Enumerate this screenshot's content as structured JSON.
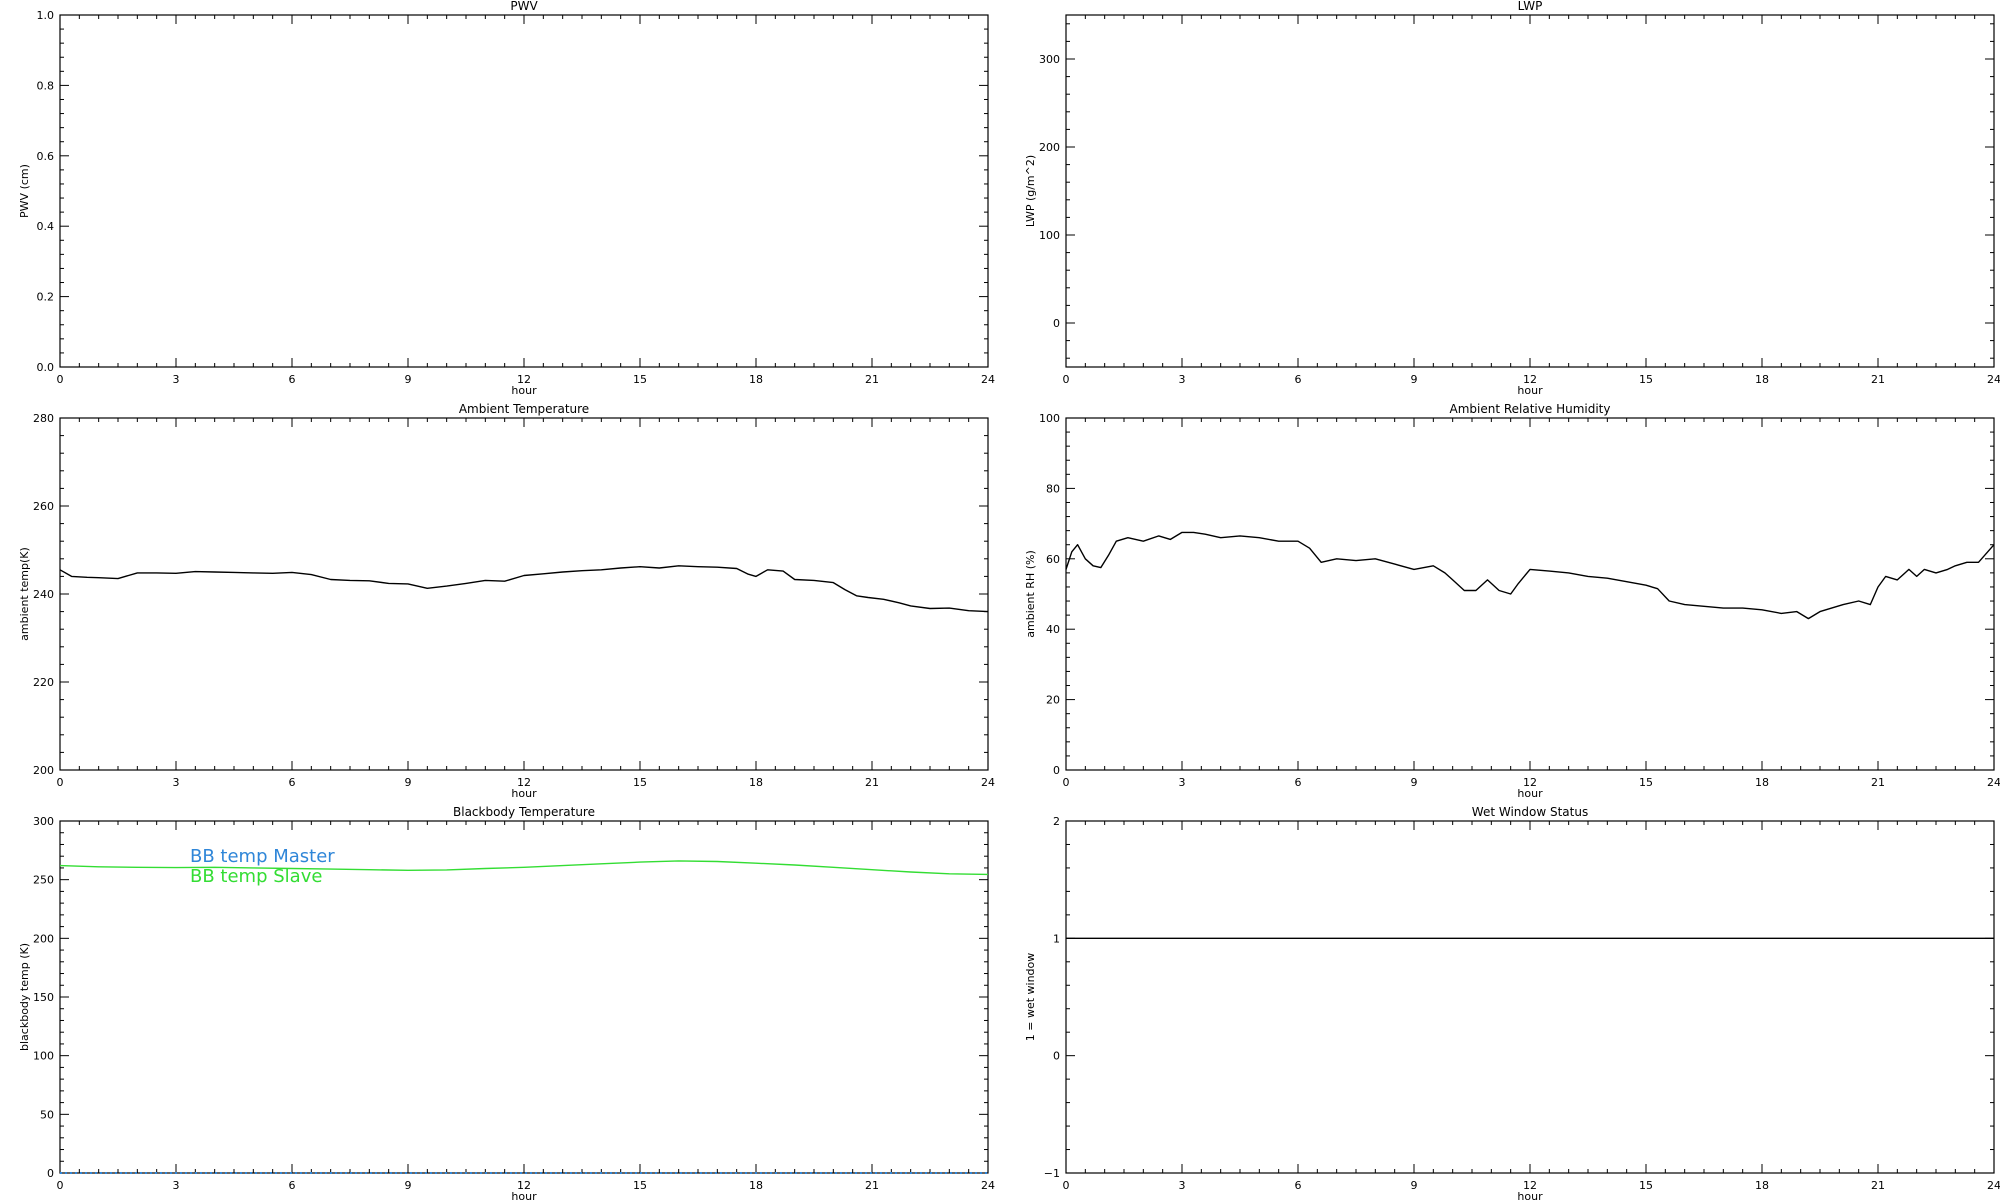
{
  "chart_data": [
    {
      "type": "line",
      "title": "PWV",
      "xlabel": "hour",
      "ylabel": "PWV (cm)",
      "xlim": [
        0,
        24
      ],
      "ylim": [
        0,
        1
      ],
      "xticks": [
        0,
        3,
        6,
        9,
        12,
        15,
        18,
        21,
        24
      ],
      "yticks": [
        0.0,
        0.2,
        0.4,
        0.6,
        0.8,
        1.0
      ],
      "ytick_labels": [
        "0.0",
        "0.2",
        "0.4",
        "0.6",
        "0.8",
        "1.0"
      ],
      "series": []
    },
    {
      "type": "line",
      "title": "LWP",
      "xlabel": "hour",
      "ylabel": "LWP (g/m^2)",
      "xlim": [
        0,
        24
      ],
      "ylim": [
        -50,
        350
      ],
      "xticks": [
        0,
        3,
        6,
        9,
        12,
        15,
        18,
        21,
        24
      ],
      "yticks": [
        0,
        100,
        200,
        300
      ],
      "ytick_labels": [
        "0",
        "100",
        "200",
        "300"
      ],
      "series": []
    },
    {
      "type": "line",
      "title": "Ambient Temperature",
      "xlabel": "hour",
      "ylabel": "ambient temp(K)",
      "xlim": [
        0,
        24
      ],
      "ylim": [
        200,
        280
      ],
      "xticks": [
        0,
        3,
        6,
        9,
        12,
        15,
        18,
        21,
        24
      ],
      "yticks": [
        200,
        220,
        240,
        260,
        280
      ],
      "ytick_labels": [
        "200",
        "220",
        "240",
        "260",
        "280"
      ],
      "series": [
        {
          "color": "#000000",
          "x": [
            0,
            0.3,
            0.7,
            1,
            1.5,
            2,
            2.5,
            3,
            3.5,
            4,
            4.5,
            5,
            5.5,
            6,
            6.5,
            7,
            7.5,
            8,
            8.5,
            9,
            9.5,
            10,
            10.5,
            11,
            11.5,
            12,
            12.5,
            13,
            13.5,
            14,
            14.5,
            15,
            15.5,
            16,
            16.5,
            17,
            17.5,
            17.8,
            18,
            18.3,
            18.7,
            19,
            19.5,
            20,
            20.3,
            20.6,
            20.9,
            21.3,
            21.7,
            22,
            22.5,
            23,
            23.5,
            24
          ],
          "y": [
            245.5,
            244,
            243.8,
            243.7,
            243.5,
            244.8,
            244.8,
            244.7,
            245.1,
            245.0,
            244.9,
            244.8,
            244.7,
            244.9,
            244.4,
            243.3,
            243.1,
            243.0,
            242.4,
            242.3,
            241.3,
            241.8,
            242.4,
            243.1,
            242.9,
            244.2,
            244.6,
            245.0,
            245.3,
            245.5,
            245.9,
            246.2,
            245.9,
            246.4,
            246.2,
            246.1,
            245.8,
            244.5,
            244.0,
            245.5,
            245.2,
            243.3,
            243.1,
            242.6,
            241.0,
            239.6,
            239.2,
            238.8,
            238.0,
            237.3,
            236.7,
            236.8,
            236.2,
            236.0
          ]
        }
      ]
    },
    {
      "type": "line",
      "title": "Ambient Relative Humidity",
      "xlabel": "hour",
      "ylabel": "ambient RH (%)",
      "xlim": [
        0,
        24
      ],
      "ylim": [
        0,
        100
      ],
      "xticks": [
        0,
        3,
        6,
        9,
        12,
        15,
        18,
        21,
        24
      ],
      "yticks": [
        0,
        20,
        40,
        60,
        80,
        100
      ],
      "ytick_labels": [
        "0",
        "20",
        "40",
        "60",
        "80",
        "100"
      ],
      "series": [
        {
          "color": "#000000",
          "x": [
            0,
            0.15,
            0.3,
            0.5,
            0.7,
            0.9,
            1.1,
            1.3,
            1.6,
            2,
            2.4,
            2.7,
            3,
            3.3,
            3.6,
            4,
            4.5,
            5,
            5.5,
            6,
            6.3,
            6.6,
            7,
            7.5,
            8,
            8.5,
            9,
            9.5,
            9.8,
            10,
            10.3,
            10.6,
            10.9,
            11.2,
            11.5,
            11.7,
            12,
            12.5,
            13,
            13.5,
            14,
            14.5,
            15,
            15.3,
            15.6,
            16,
            16.5,
            17,
            17.5,
            18,
            18.5,
            18.9,
            19.2,
            19.5,
            19.8,
            20.1,
            20.5,
            20.8,
            21,
            21.2,
            21.5,
            21.8,
            22,
            22.2,
            22.5,
            22.8,
            23,
            23.3,
            23.6,
            24
          ],
          "y": [
            57,
            62,
            64,
            60,
            58,
            57.5,
            61,
            65,
            66,
            65,
            66.5,
            65.5,
            67.5,
            67.5,
            67,
            66,
            66.5,
            66,
            65,
            65,
            63,
            59,
            60,
            59.5,
            60,
            58.5,
            57,
            58,
            56,
            54,
            51,
            51,
            54,
            51,
            50,
            53,
            57,
            56.5,
            56,
            55,
            54.5,
            53.5,
            52.5,
            51.5,
            48,
            47,
            46.5,
            46,
            46,
            45.5,
            44.5,
            45,
            43,
            45,
            46,
            47,
            48,
            47,
            52,
            55,
            54,
            57,
            55,
            57,
            56,
            57,
            58,
            59,
            59,
            64
          ]
        }
      ]
    },
    {
      "type": "line",
      "title": "Blackbody Temperature",
      "xlabel": "hour",
      "ylabel": "blackbody temp (K)",
      "xlim": [
        0,
        24
      ],
      "ylim": [
        0,
        300
      ],
      "xticks": [
        0,
        3,
        6,
        9,
        12,
        15,
        18,
        21,
        24
      ],
      "yticks": [
        0,
        50,
        100,
        150,
        200,
        250,
        300
      ],
      "ytick_labels": [
        "0",
        "50",
        "100",
        "150",
        "200",
        "250",
        "300"
      ],
      "series": [
        {
          "name": "BB temp Master",
          "color": "#2f86d8",
          "x": [
            0,
            24
          ],
          "y": [
            0,
            0
          ]
        },
        {
          "name": "BB temp Slave",
          "color": "#33dd33",
          "x": [
            0,
            1,
            2,
            3,
            4,
            5,
            6,
            7,
            8,
            9,
            10,
            11,
            12,
            13,
            14,
            15,
            16,
            17,
            18,
            19,
            20,
            21,
            22,
            23,
            24
          ],
          "y": [
            262,
            261,
            260.5,
            260.3,
            260.5,
            260,
            259.5,
            259,
            258.5,
            258,
            258.3,
            259.5,
            260.5,
            262,
            263.5,
            265,
            266,
            265.5,
            264,
            262.5,
            260.5,
            258.5,
            256.5,
            255,
            254.5
          ]
        }
      ]
    },
    {
      "type": "line",
      "title": "Wet Window Status",
      "xlabel": "hour",
      "ylabel": "1 = wet window",
      "xlim": [
        0,
        24
      ],
      "ylim": [
        -1,
        2
      ],
      "xticks": [
        0,
        3,
        6,
        9,
        12,
        15,
        18,
        21,
        24
      ],
      "yticks": [
        -1,
        0,
        1,
        2
      ],
      "ytick_labels": [
        "−1",
        "0",
        "1",
        "2"
      ],
      "series": [
        {
          "color": "#000000",
          "x": [
            0,
            24
          ],
          "y": [
            1,
            1
          ]
        }
      ]
    }
  ]
}
